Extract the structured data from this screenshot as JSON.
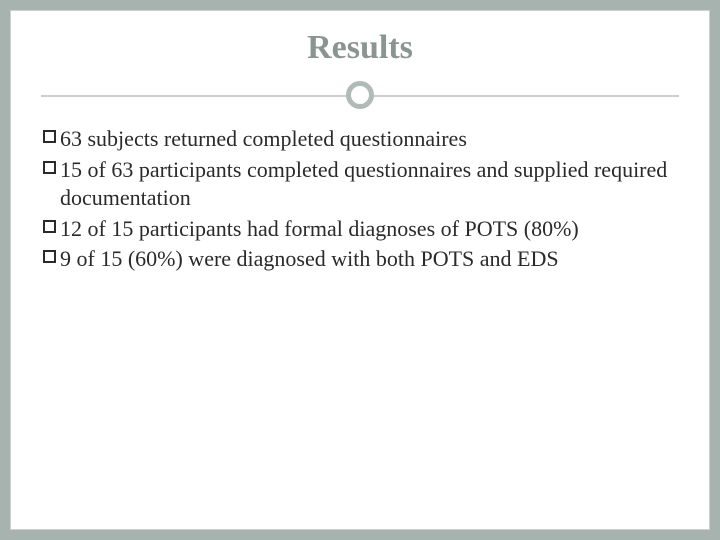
{
  "slide": {
    "title": "Results",
    "title_color": "#8a9490",
    "title_fontsize": 34,
    "divider_line_color": "#c9cfcd",
    "divider_circle_border": "#b0bab6",
    "background": "#ffffff",
    "outer_background": "#a6b3af",
    "body_fontsize": 22,
    "body_color": "#2a2a2a",
    "bullet_style": "hollow-square",
    "items": [
      "63 subjects returned completed questionnaires",
      "15 of 63 participants completed questionnaires and supplied required documentation",
      "12 of 15 participants had formal diagnoses of POTS (80%)",
      "9 of 15 (60%) were diagnosed with both POTS and EDS"
    ]
  }
}
